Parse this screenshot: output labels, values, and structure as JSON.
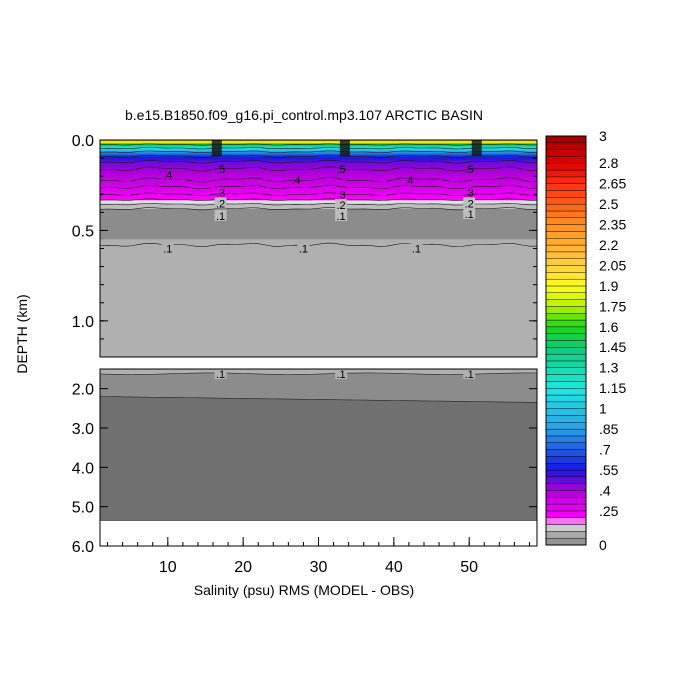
{
  "chart_data": {
    "type": "heatmap",
    "title": "b.e15.B1850.f09_g16.pi_control.mp3.107 ARCTIC BASIN",
    "xlabel": "Salinity (psu) RMS (MODEL - OBS)",
    "ylabel": "DEPTH (km)",
    "x_ticks": [
      "10",
      "20",
      "30",
      "40",
      "50"
    ],
    "x_tick_values": [
      10,
      20,
      30,
      40,
      50
    ],
    "xlim": [
      1,
      59
    ],
    "upper_panel": {
      "ylim": [
        0,
        1.2
      ],
      "y_ticks": [
        "0.0",
        "0.5",
        "1.0"
      ],
      "y_tick_values": [
        0,
        0.5,
        1.0
      ]
    },
    "lower_panel": {
      "ylim": [
        1.5,
        6.0
      ],
      "y_ticks": [
        "2.0",
        "3.0",
        "4.0",
        "5.0",
        "6.0"
      ],
      "y_tick_values": [
        2,
        3,
        4,
        5,
        6
      ]
    },
    "colorbar": {
      "min": 0,
      "max": 3,
      "step": 0.05,
      "labels": [
        "3",
        "2.8",
        "2.65",
        "2.5",
        "2.35",
        "2.2",
        "2.05",
        "1.9",
        "1.75",
        "1.6",
        "1.45",
        "1.3",
        "1.15",
        "1",
        ".85",
        ".7",
        ".55",
        ".4",
        ".25",
        "0"
      ]
    },
    "contour_labels": [
      {
        "text": ".1",
        "x": 10,
        "depth": 0.6
      },
      {
        "text": ".1",
        "x": 28,
        "depth": 0.6
      },
      {
        "text": ".1",
        "x": 43,
        "depth": 0.6
      },
      {
        "text": ".1",
        "x": 17,
        "depth": 0.42
      },
      {
        "text": ".1",
        "x": 33,
        "depth": 0.42
      },
      {
        "text": ".1",
        "x": 50,
        "depth": 0.41
      },
      {
        "text": ".2",
        "x": 17,
        "depth": 0.35
      },
      {
        "text": ".2",
        "x": 33,
        "depth": 0.36
      },
      {
        "text": ".2",
        "x": 50,
        "depth": 0.35
      },
      {
        "text": ".3",
        "x": 17,
        "depth": 0.29
      },
      {
        "text": ".3",
        "x": 33,
        "depth": 0.3
      },
      {
        "text": ".3",
        "x": 50,
        "depth": 0.29
      },
      {
        "text": ".4",
        "x": 10,
        "depth": 0.19
      },
      {
        "text": ".4",
        "x": 27,
        "depth": 0.22
      },
      {
        "text": ".4",
        "x": 42,
        "depth": 0.22
      },
      {
        "text": ".5",
        "x": 17,
        "depth": 0.16
      },
      {
        "text": ".5",
        "x": 33,
        "depth": 0.16
      },
      {
        "text": ".5",
        "x": 50,
        "depth": 0.16
      },
      {
        "text": ".1",
        "x": 17,
        "depth": 1.63
      },
      {
        "text": ".1",
        "x": 33,
        "depth": 1.63
      },
      {
        "text": ".1",
        "x": 50,
        "depth": 1.63
      }
    ]
  }
}
